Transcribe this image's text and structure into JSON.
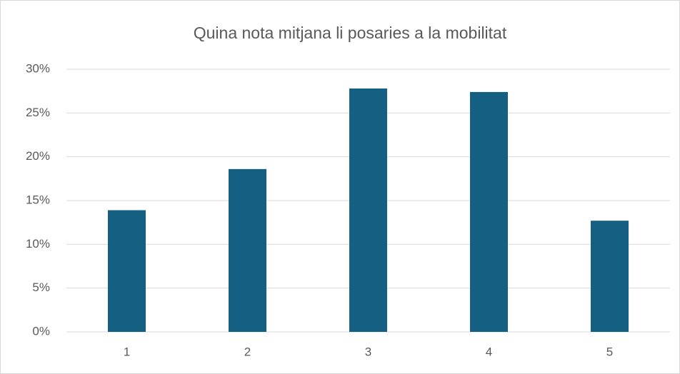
{
  "chart_data": {
    "type": "bar",
    "title": "Quina nota mitjana li posaries a la mobilitat",
    "categories": [
      "1",
      "2",
      "3",
      "4",
      "5"
    ],
    "values": [
      13.9,
      18.6,
      27.8,
      27.4,
      12.7
    ],
    "color": "#156082",
    "ylim": [
      0,
      30
    ],
    "yticks": [
      {
        "value": 0,
        "label": "0%"
      },
      {
        "value": 5,
        "label": "5%"
      },
      {
        "value": 10,
        "label": "10%"
      },
      {
        "value": 15,
        "label": "15%"
      },
      {
        "value": 20,
        "label": "20%"
      },
      {
        "value": 25,
        "label": "25%"
      },
      {
        "value": 30,
        "label": "30%"
      }
    ],
    "grid": true
  }
}
